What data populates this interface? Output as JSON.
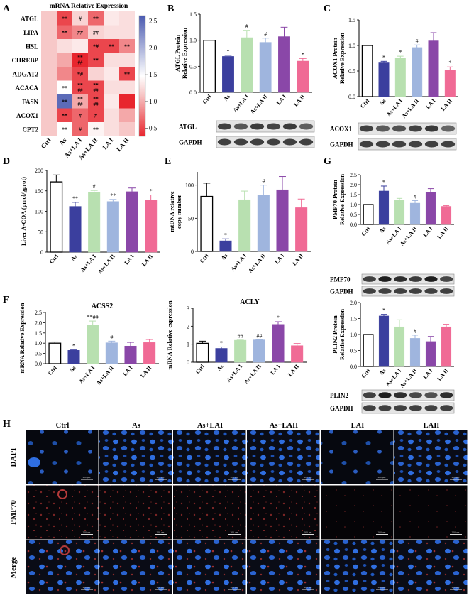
{
  "colors": {
    "ctrl": "#ffffff",
    "as": "#3b3f9e",
    "la1mix": "#b8e0b0",
    "la2mix": "#9fb5de",
    "la1": "#8a47a8",
    "la2": "#f06a95",
    "micro_dark": "#0a0c14",
    "dapi": "#2f6ee0",
    "pmp70": "#a8332e"
  },
  "chart_data": [
    {
      "type": "heatmap",
      "panel": "A",
      "title": "mRNA Relative Expression",
      "rows": [
        "ATGL",
        "LIPA",
        "HSL",
        "CHREBP",
        "ADGAT2",
        "ACACA",
        "FASN",
        "ACOX1",
        "CPT2"
      ],
      "columns": [
        "Ctrl",
        "As",
        "As+LA I",
        "As+LA II",
        "LA I",
        "LA II"
      ],
      "values": [
        [
          1.0,
          0.6,
          1.1,
          0.7,
          1.3,
          1.2
        ],
        [
          1.0,
          0.7,
          0.8,
          1.1,
          1.2,
          1.2
        ],
        [
          1.0,
          1.2,
          1.3,
          0.6,
          0.6,
          0.8
        ],
        [
          1.0,
          0.9,
          0.5,
          0.6,
          1.2,
          1.2
        ],
        [
          1.0,
          0.8,
          0.6,
          1.1,
          1.3,
          0.6
        ],
        [
          1.0,
          1.5,
          0.6,
          0.6,
          1.2,
          1.2
        ],
        [
          1.0,
          2.4,
          0.9,
          0.6,
          1.3,
          0.5
        ],
        [
          1.0,
          0.6,
          0.7,
          0.6,
          1.2,
          0.9
        ],
        [
          1.0,
          1.5,
          0.7,
          1.4,
          1.2,
          1.0
        ]
      ],
      "annotations": [
        [
          "",
          "**",
          "#",
          "**",
          "",
          ""
        ],
        [
          "",
          "**",
          "##",
          "##",
          "",
          ""
        ],
        [
          "",
          "",
          "",
          "*#",
          "**",
          "**"
        ],
        [
          "",
          "",
          "**##",
          "**",
          "",
          ""
        ],
        [
          "",
          "",
          "*#",
          "",
          "",
          "**"
        ],
        [
          "",
          "**",
          "**##",
          "**##",
          "",
          ""
        ],
        [
          "",
          "**",
          "**##",
          "**##",
          "",
          ""
        ],
        [
          "",
          "**",
          "#",
          "#",
          "",
          ""
        ],
        [
          "",
          "**",
          "#",
          "**",
          "",
          ""
        ]
      ],
      "colorbar_ticks": [
        "2.5",
        "2.0",
        "1.5",
        "1.0",
        "0.5"
      ]
    },
    {
      "type": "bar",
      "panel": "B",
      "ylabel": "ATGL Protein Relative Expression",
      "ylim": [
        0,
        1.5
      ],
      "yticks": [
        "0.0",
        "0.5",
        "1.0",
        "1.5"
      ],
      "categories": [
        "Ctrl",
        "As",
        "As+LA I",
        "As+LA II",
        "LA I",
        "LA II"
      ],
      "values": [
        1.0,
        0.69,
        1.05,
        0.96,
        1.07,
        0.6
      ],
      "errors": [
        0.0,
        0.02,
        0.14,
        0.08,
        0.18,
        0.05
      ],
      "marks": [
        "",
        "*",
        "#",
        "#",
        "",
        "*"
      ],
      "blot_labels": [
        "ATGL",
        "GAPDH"
      ]
    },
    {
      "type": "bar",
      "panel": "C",
      "ylabel": "ACOX1 Protein Relative Expression",
      "ylim": [
        0,
        1.5
      ],
      "yticks": [
        "0.0",
        "0.5",
        "1.0",
        "1.5"
      ],
      "categories": [
        "Ctrl",
        "As",
        "As+LA I",
        "As+LA II",
        "LA I",
        "LA II"
      ],
      "values": [
        1.0,
        0.66,
        0.76,
        0.96,
        1.09,
        0.52
      ],
      "errors": [
        0.0,
        0.03,
        0.03,
        0.05,
        0.16,
        0.06
      ],
      "marks": [
        "",
        "*",
        "*",
        "#",
        "",
        "*"
      ],
      "blot_labels": [
        "ACOX1",
        "GAPDH"
      ]
    },
    {
      "type": "bar",
      "panel": "D",
      "ylabel": "Liver A-COA (pmol/gprot)",
      "ylim": [
        0,
        200
      ],
      "yticks": [
        "0",
        "50",
        "100",
        "150",
        "200"
      ],
      "categories": [
        "Ctrl",
        "As",
        "As+LA I",
        "As+LA II",
        "LA I",
        "LA II"
      ],
      "values": [
        172,
        112,
        147,
        124,
        148,
        128
      ],
      "errors": [
        17,
        10,
        4,
        5,
        9,
        12
      ],
      "marks": [
        "",
        "**",
        "#",
        "**",
        "",
        "*"
      ]
    },
    {
      "type": "bar",
      "panel": "E",
      "ylabel": "mtDNA relative copy number",
      "ylim": [
        0,
        120
      ],
      "yticks": [
        "0",
        "50",
        "100"
      ],
      "categories": [
        "Ctrl",
        "As",
        "As+LA I",
        "As+LA II",
        "LA I",
        "LA II"
      ],
      "values": [
        83,
        16,
        78,
        85,
        93,
        66
      ],
      "errors": [
        20,
        3,
        13,
        15,
        20,
        13
      ],
      "marks": [
        "",
        "*",
        "",
        "#",
        "",
        ""
      ]
    },
    {
      "type": "bar",
      "panel": "G1",
      "ylabel": "PMP70 Protein Relative Expression",
      "ylim": [
        0,
        2.5
      ],
      "yticks": [
        "0.0",
        "0.5",
        "1.0",
        "1.5",
        "2.0",
        "2.5"
      ],
      "categories": [
        "Ctrl",
        "As",
        "As+LA I",
        "As+LA II",
        "LA I",
        "LA II"
      ],
      "values": [
        1.0,
        1.68,
        1.24,
        1.07,
        1.62,
        0.91
      ],
      "errors": [
        0.0,
        0.25,
        0.07,
        0.13,
        0.18,
        0.04
      ],
      "marks": [
        "",
        "*",
        "",
        "#",
        "",
        ""
      ],
      "blot_labels": [
        "PMP70",
        "GAPDH"
      ]
    },
    {
      "type": "bar",
      "panel": "F1",
      "title": "ACSS2",
      "ylabel": "mRNA Relative Expression",
      "ylim": [
        0,
        2.5
      ],
      "yticks": [
        "0.0",
        "0.5",
        "1.0",
        "1.5",
        "2.0",
        "2.5"
      ],
      "categories": [
        "Ctrl",
        "As",
        "As+LA I",
        "As+LA II",
        "LA I",
        "LA II"
      ],
      "values": [
        1.0,
        0.65,
        1.88,
        1.02,
        0.86,
        1.03
      ],
      "errors": [
        0.06,
        0.02,
        0.2,
        0.08,
        0.18,
        0.15
      ],
      "marks": [
        "",
        "*",
        "**##",
        "#",
        "",
        ""
      ]
    },
    {
      "type": "bar",
      "panel": "F2",
      "title": "ACLY",
      "ylabel": "mRNA Relative expression",
      "ylim": [
        0,
        3
      ],
      "yticks": [
        "0",
        "1",
        "2",
        "3"
      ],
      "categories": [
        "Ctrl",
        "As",
        "As+LA I",
        "As+LA II",
        "LA I",
        "LA II"
      ],
      "values": [
        1.05,
        0.77,
        1.22,
        1.24,
        2.1,
        0.92
      ],
      "errors": [
        0.12,
        0.08,
        0.01,
        0.01,
        0.15,
        0.12
      ],
      "marks": [
        "",
        "*",
        "##",
        "##",
        "*",
        ""
      ]
    },
    {
      "type": "bar",
      "panel": "G2",
      "ylabel": "PLIN2 Protein Relative Expression",
      "ylim": [
        0,
        2.0
      ],
      "yticks": [
        "0.0",
        "0.5",
        "1.0",
        "1.5",
        "2.0"
      ],
      "categories": [
        "Ctrl",
        "As",
        "As+LA I",
        "As+LA II",
        "LA I",
        "LA II"
      ],
      "values": [
        1.0,
        1.58,
        1.24,
        0.88,
        0.78,
        1.24
      ],
      "errors": [
        0.0,
        0.05,
        0.22,
        0.1,
        0.16,
        0.08
      ],
      "marks": [
        "",
        "*",
        "",
        "#",
        "",
        ""
      ],
      "blot_labels": [
        "PLIN2",
        "GAPDH"
      ]
    }
  ],
  "panel_letters": [
    "A",
    "B",
    "C",
    "D",
    "E",
    "F",
    "G",
    "H"
  ],
  "micrographs": {
    "columns": [
      "Ctrl",
      "As",
      "As+LAI",
      "As+LAII",
      "LAI",
      "LAII"
    ],
    "rows": [
      "DAPI",
      "PMP70",
      "Merge"
    ],
    "scale_text": "200 μm"
  }
}
